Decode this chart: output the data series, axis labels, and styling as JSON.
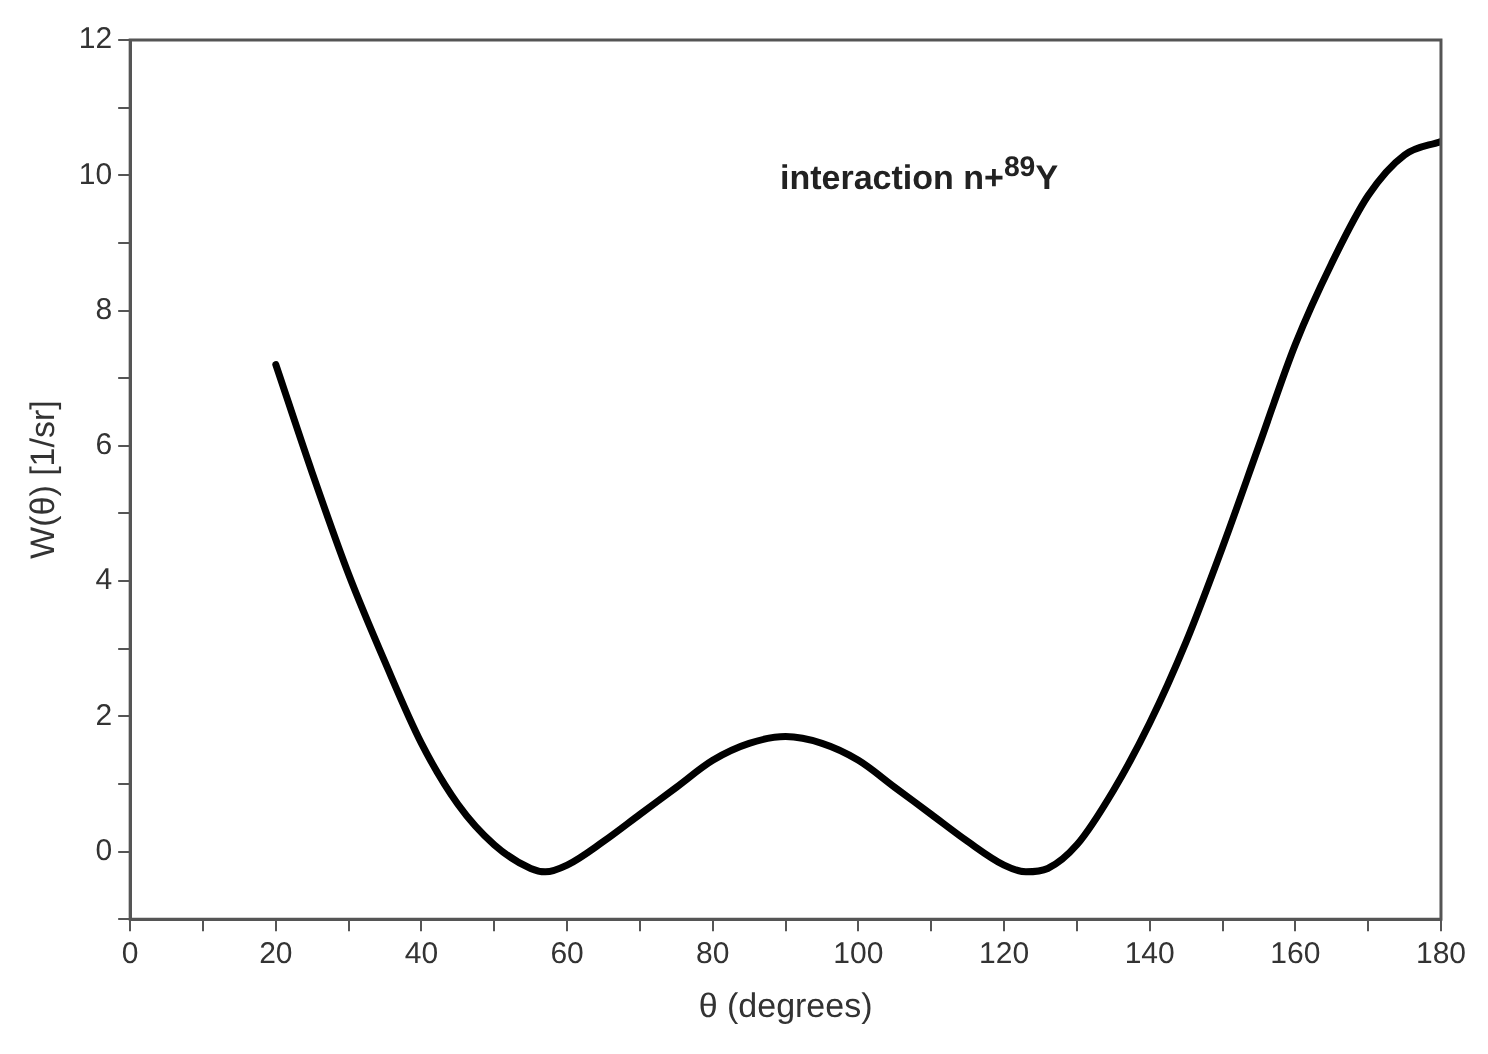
{
  "chart_data": {
    "type": "line",
    "xlabel": "θ (degrees)",
    "ylabel": "W(θ) [1/sr]",
    "annotations": [
      "interaction n+$^{89}$Y"
    ],
    "x": [
      20,
      25,
      30,
      35,
      40,
      45,
      50,
      55,
      57,
      60,
      65,
      70,
      75,
      80,
      85,
      90,
      95,
      100,
      105,
      110,
      115,
      120,
      123,
      126,
      130,
      135,
      140,
      145,
      150,
      155,
      160,
      165,
      170,
      175,
      180
    ],
    "series": [
      {
        "color": "#000000",
        "values": [
          7.2,
          5.6,
          4.1,
          2.8,
          1.6,
          0.7,
          0.1,
          -0.25,
          -0.3,
          -0.2,
          0.15,
          0.55,
          0.95,
          1.35,
          1.6,
          1.7,
          1.6,
          1.35,
          0.95,
          0.55,
          0.15,
          -0.2,
          -0.3,
          -0.25,
          0.1,
          0.9,
          1.9,
          3.1,
          4.5,
          6.0,
          7.5,
          8.7,
          9.7,
          10.3,
          10.5
        ]
      }
    ],
    "xlim": [
      0,
      180
    ],
    "ylim": [
      -1,
      12
    ],
    "xticks": [
      0,
      {
        "value": 10,
        "label": null
      },
      20,
      {
        "value": 30,
        "label": null
      },
      40,
      {
        "value": 50,
        "label": null
      },
      60,
      {
        "value": 70,
        "label": null
      },
      80,
      {
        "value": 90,
        "label": null
      },
      100,
      {
        "value": 110,
        "label": null
      },
      120,
      {
        "value": 130,
        "label": null
      },
      140,
      {
        "value": 150,
        "label": null
      },
      160,
      {
        "value": 170,
        "label": null
      },
      180
    ],
    "yticks": [
      {
        "value": -1,
        "label": null
      },
      0,
      {
        "value": 1,
        "label": null
      },
      2,
      {
        "value": 3,
        "label": null
      },
      4,
      {
        "value": 5,
        "label": null
      },
      6,
      {
        "value": 7,
        "label": null
      },
      8,
      {
        "value": 9,
        "label": null
      },
      10,
      {
        "value": 11,
        "label": null
      },
      12
    ],
    "grid": false,
    "legend": false,
    "marker": "none",
    "line_style": "solid"
  }
}
